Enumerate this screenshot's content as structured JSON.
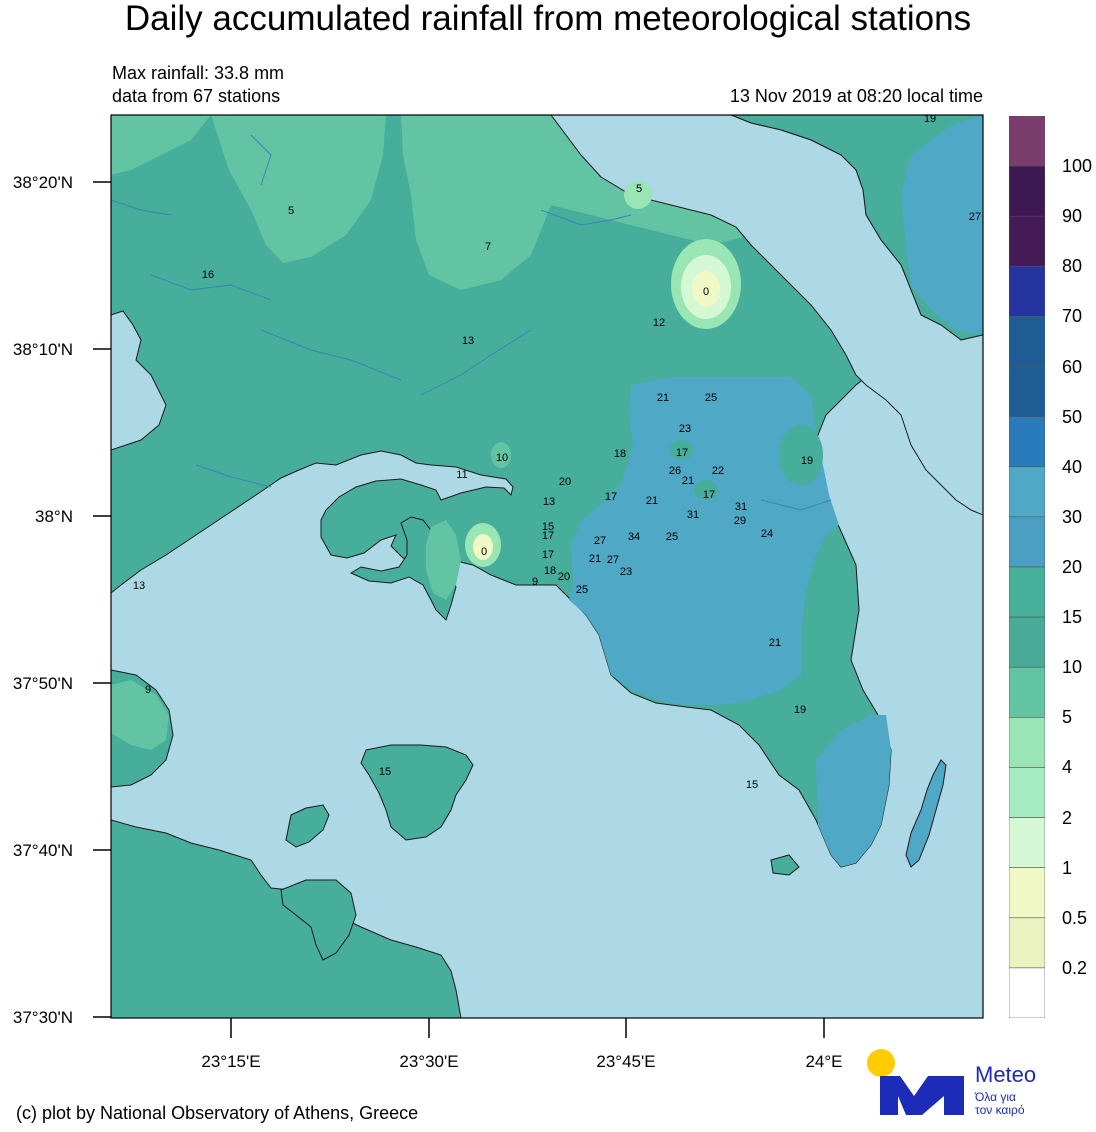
{
  "title": "Daily accumulated rainfall from meteorological stations",
  "info": {
    "max_rainfall": "Max rainfall: 33.8 mm",
    "stations": "data from 67 stations",
    "timestamp": "13 Nov 2019 at 08:20 local time"
  },
  "axes": {
    "lat_labels": [
      "38°20'N",
      "38°10'N",
      "38°N",
      "37°50'N",
      "37°40'N",
      "37°30'N"
    ],
    "lon_labels": [
      "23°15'E",
      "23°30'E",
      "23°45'E",
      "24°E"
    ]
  },
  "colorbar": {
    "labels": [
      "100",
      "90",
      "80",
      "70",
      "60",
      "50",
      "40",
      "30",
      "20",
      "15",
      "10",
      "5",
      "4",
      "2",
      "1",
      "0.5",
      "0.2"
    ],
    "colors": [
      "#7b3d6e",
      "#3d1852",
      "#441a57",
      "#2434a0",
      "#1e5d94",
      "#1e5e94",
      "#2a7bbc",
      "#4fa8c5",
      "#4a9fc2",
      "#47b09b",
      "#4aaa98",
      "#62c4a3",
      "#99e5b4",
      "#a6ecc2",
      "#d5f8d4",
      "#f0f8c6",
      "#eaf3c0",
      "#ffffff"
    ]
  },
  "logo": {
    "name": "Meteo",
    "slogan_line1": "Όλα για",
    "slogan_line2": "τον καιρό"
  },
  "credit": "(c) plot by National Observatory of Athens, Greece",
  "stations": [
    {
      "label": "19"
    },
    {
      "label": "27"
    },
    {
      "label": "5"
    },
    {
      "label": "5"
    },
    {
      "label": "7"
    },
    {
      "label": "16"
    },
    {
      "label": "0"
    },
    {
      "label": "12"
    },
    {
      "label": "13"
    },
    {
      "label": "21"
    },
    {
      "label": "25"
    },
    {
      "label": "23"
    },
    {
      "label": "10"
    },
    {
      "label": "18"
    },
    {
      "label": "17"
    },
    {
      "label": "19"
    },
    {
      "label": "26"
    },
    {
      "label": "22"
    },
    {
      "label": "21"
    },
    {
      "label": "11"
    },
    {
      "label": "20"
    },
    {
      "label": "17"
    },
    {
      "label": "17"
    },
    {
      "label": "13"
    },
    {
      "label": "21"
    },
    {
      "label": "31"
    },
    {
      "label": "31"
    },
    {
      "label": "29"
    },
    {
      "label": "15"
    },
    {
      "label": "17"
    },
    {
      "label": "27"
    },
    {
      "label": "34"
    },
    {
      "label": "25"
    },
    {
      "label": "24"
    },
    {
      "label": "0"
    },
    {
      "label": "17"
    },
    {
      "label": "21"
    },
    {
      "label": "27"
    },
    {
      "label": "18"
    },
    {
      "label": "23"
    },
    {
      "label": "9"
    },
    {
      "label": "20"
    },
    {
      "label": "25"
    },
    {
      "label": "13"
    },
    {
      "label": "21"
    },
    {
      "label": "9"
    },
    {
      "label": "19"
    },
    {
      "label": "15"
    },
    {
      "label": "15"
    }
  ]
}
